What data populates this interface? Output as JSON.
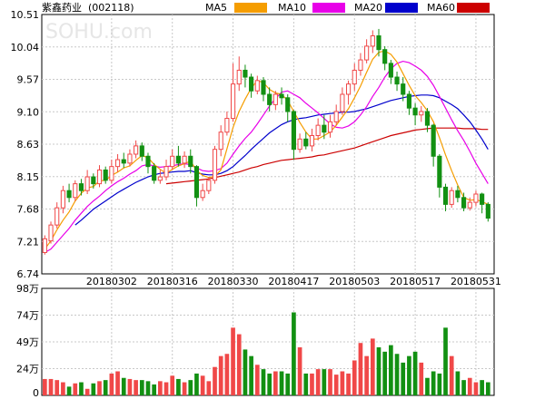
{
  "header": {
    "stock_name": "紫鑫药业",
    "stock_code": "(002118)",
    "watermark": "SOHU.com"
  },
  "colors": {
    "up": "#f04848",
    "down": "#129012",
    "ma5": "#f59d00",
    "ma10": "#e800e8",
    "ma20": "#0000cc",
    "ma60": "#cc0000",
    "grid": "#c8c8c8",
    "axis": "#000000"
  },
  "chart_data": [
    {
      "type": "candlestick",
      "title": "",
      "legend": [
        {
          "name": "MA5",
          "color": "#f59d00"
        },
        {
          "name": "MA10",
          "color": "#e800e8"
        },
        {
          "name": "MA20",
          "color": "#0000cc"
        },
        {
          "name": "MA60",
          "color": "#cc0000"
        }
      ],
      "legend_placement": "top",
      "y_ticks": [
        "10.51",
        "10.04",
        "9.57",
        "9.10",
        "8.63",
        "8.15",
        "7.68",
        "7.21",
        "6.74"
      ],
      "ylim": [
        6.74,
        10.51
      ],
      "x_ticks": [
        "20180302",
        "20180316",
        "20180330",
        "20180417",
        "20180503",
        "20180517",
        "20180531"
      ],
      "x_tick_index": [
        11,
        21,
        31,
        41,
        51,
        61,
        71
      ],
      "grid": true,
      "candles": [
        [
          7.05,
          7.25,
          7.3,
          7.02
        ],
        [
          7.22,
          7.45,
          7.5,
          7.18
        ],
        [
          7.45,
          7.7,
          7.78,
          7.4
        ],
        [
          7.7,
          7.95,
          8.02,
          7.62
        ],
        [
          7.95,
          7.85,
          8.05,
          7.78
        ],
        [
          7.85,
          8.05,
          8.1,
          7.8
        ],
        [
          8.05,
          7.95,
          8.12,
          7.88
        ],
        [
          7.95,
          8.15,
          8.25,
          7.9
        ],
        [
          8.15,
          8.05,
          8.2,
          7.98
        ],
        [
          8.05,
          8.25,
          8.32,
          8.0
        ],
        [
          8.25,
          8.1,
          8.3,
          8.05
        ],
        [
          8.1,
          8.3,
          8.4,
          8.05
        ],
        [
          8.3,
          8.4,
          8.48,
          8.22
        ],
        [
          8.4,
          8.35,
          8.5,
          8.28
        ],
        [
          8.35,
          8.48,
          8.55,
          8.3
        ],
        [
          8.48,
          8.6,
          8.68,
          8.42
        ],
        [
          8.6,
          8.45,
          8.65,
          8.38
        ],
        [
          8.45,
          8.3,
          8.5,
          8.2
        ],
        [
          8.3,
          8.1,
          8.35,
          8.05
        ],
        [
          8.1,
          8.15,
          8.25,
          8.05
        ],
        [
          8.15,
          8.3,
          8.4,
          8.1
        ],
        [
          8.3,
          8.45,
          8.55,
          8.25
        ],
        [
          8.45,
          8.35,
          8.6,
          8.3
        ],
        [
          8.35,
          8.45,
          8.52,
          8.28
        ],
        [
          8.45,
          8.3,
          8.55,
          8.2
        ],
        [
          8.3,
          7.85,
          8.32,
          7.72
        ],
        [
          7.85,
          7.95,
          8.05,
          7.8
        ],
        [
          7.95,
          8.1,
          8.15,
          7.9
        ],
        [
          8.1,
          8.55,
          8.6,
          8.05
        ],
        [
          8.55,
          8.8,
          8.9,
          8.45
        ],
        [
          8.8,
          9.0,
          9.1,
          8.75
        ],
        [
          9.0,
          9.5,
          9.8,
          8.95
        ],
        [
          9.5,
          9.7,
          9.9,
          9.4
        ],
        [
          9.7,
          9.6,
          9.78,
          9.45
        ],
        [
          9.6,
          9.4,
          9.65,
          9.3
        ],
        [
          9.4,
          9.55,
          9.62,
          9.35
        ],
        [
          9.55,
          9.35,
          9.6,
          9.25
        ],
        [
          9.35,
          9.2,
          9.45,
          9.1
        ],
        [
          9.2,
          9.35,
          9.4,
          9.12
        ],
        [
          9.35,
          9.3,
          9.45,
          9.2
        ],
        [
          9.3,
          9.1,
          9.35,
          8.95
        ],
        [
          9.1,
          8.55,
          9.12,
          8.4
        ],
        [
          8.55,
          8.7,
          8.78,
          8.5
        ],
        [
          8.7,
          8.6,
          8.8,
          8.55
        ],
        [
          8.6,
          8.75,
          8.85,
          8.52
        ],
        [
          8.75,
          8.9,
          9.0,
          8.68
        ],
        [
          8.9,
          8.8,
          9.05,
          8.7
        ],
        [
          8.8,
          8.95,
          9.05,
          8.72
        ],
        [
          8.95,
          9.1,
          9.2,
          8.9
        ],
        [
          9.1,
          9.35,
          9.45,
          9.05
        ],
        [
          9.35,
          9.5,
          9.55,
          9.2
        ],
        [
          9.5,
          9.7,
          9.8,
          9.4
        ],
        [
          9.7,
          9.85,
          9.95,
          9.62
        ],
        [
          9.85,
          10.05,
          10.15,
          9.8
        ],
        [
          10.05,
          10.2,
          10.28,
          9.95
        ],
        [
          10.2,
          10.0,
          10.3,
          9.9
        ],
        [
          10.0,
          9.8,
          10.05,
          9.7
        ],
        [
          9.8,
          9.6,
          9.85,
          9.5
        ],
        [
          9.6,
          9.5,
          9.68,
          9.4
        ],
        [
          9.5,
          9.35,
          9.6,
          9.25
        ],
        [
          9.35,
          9.15,
          9.4,
          9.05
        ],
        [
          9.15,
          9.05,
          9.22,
          8.9
        ],
        [
          9.05,
          9.1,
          9.18,
          8.95
        ],
        [
          9.1,
          8.9,
          9.15,
          8.8
        ],
        [
          8.9,
          8.45,
          8.92,
          8.3
        ],
        [
          8.45,
          8.0,
          8.48,
          7.85
        ],
        [
          8.0,
          7.75,
          8.05,
          7.65
        ],
        [
          7.75,
          7.95,
          8.0,
          7.7
        ],
        [
          7.95,
          7.85,
          8.02,
          7.78
        ],
        [
          7.85,
          7.7,
          7.92,
          7.65
        ],
        [
          7.7,
          7.78,
          7.85,
          7.66
        ],
        [
          7.78,
          7.9,
          7.95,
          7.72
        ],
        [
          7.9,
          7.75,
          7.92,
          7.62
        ],
        [
          7.75,
          7.55,
          7.78,
          7.5
        ]
      ],
      "ma5": [
        7.1,
        7.22,
        7.38,
        7.52,
        7.64,
        7.8,
        7.91,
        7.99,
        8.01,
        8.09,
        8.1,
        8.17,
        8.22,
        8.28,
        8.31,
        8.39,
        8.46,
        8.43,
        8.33,
        8.26,
        8.2,
        8.26,
        8.31,
        8.34,
        8.38,
        8.24,
        8.17,
        8.14,
        8.16,
        8.25,
        8.56,
        8.87,
        9.1,
        9.28,
        9.44,
        9.55,
        9.52,
        9.42,
        9.37,
        9.35,
        9.26,
        9.1,
        8.94,
        8.8,
        8.7,
        8.7,
        8.75,
        8.8,
        8.9,
        9.02,
        9.14,
        9.3,
        9.47,
        9.67,
        9.86,
        9.96,
        9.98,
        9.93,
        9.82,
        9.65,
        9.48,
        9.33,
        9.23,
        9.11,
        8.95,
        8.72,
        8.47,
        8.24,
        8.03,
        7.85,
        7.81,
        7.82,
        7.79,
        7.75
      ],
      "ma10": [
        7.05,
        7.1,
        7.2,
        7.3,
        7.4,
        7.52,
        7.62,
        7.72,
        7.8,
        7.87,
        7.95,
        8.02,
        8.08,
        8.13,
        8.19,
        8.24,
        8.31,
        8.33,
        8.31,
        8.29,
        8.3,
        8.31,
        8.33,
        8.34,
        8.33,
        8.28,
        8.24,
        8.23,
        8.24,
        8.27,
        8.35,
        8.48,
        8.6,
        8.71,
        8.8,
        8.92,
        9.05,
        9.18,
        9.29,
        9.38,
        9.4,
        9.35,
        9.3,
        9.22,
        9.15,
        9.08,
        9.0,
        8.92,
        8.87,
        8.86,
        8.89,
        8.95,
        9.05,
        9.17,
        9.32,
        9.45,
        9.6,
        9.72,
        9.8,
        9.83,
        9.81,
        9.76,
        9.7,
        9.61,
        9.48,
        9.32,
        9.15,
        8.98,
        8.82,
        8.68,
        8.52,
        8.35,
        8.2,
        8.05
      ],
      "ma20": [
        null,
        null,
        null,
        null,
        null,
        7.45,
        7.52,
        7.6,
        7.68,
        7.74,
        7.8,
        7.86,
        7.92,
        7.97,
        8.02,
        8.07,
        8.11,
        8.15,
        8.18,
        8.2,
        8.21,
        8.22,
        8.23,
        8.23,
        8.24,
        8.21,
        8.19,
        8.18,
        8.18,
        8.2,
        8.24,
        8.3,
        8.38,
        8.46,
        8.55,
        8.63,
        8.71,
        8.79,
        8.85,
        8.91,
        8.95,
        8.98,
        9.0,
        9.01,
        9.03,
        9.05,
        9.06,
        9.07,
        9.08,
        9.09,
        9.09,
        9.1,
        9.12,
        9.14,
        9.17,
        9.2,
        9.23,
        9.26,
        9.28,
        9.3,
        9.32,
        9.33,
        9.34,
        9.34,
        9.33,
        9.3,
        9.25,
        9.2,
        9.14,
        9.05,
        8.95,
        8.83,
        8.7,
        8.55
      ],
      "ma60": [
        null,
        null,
        null,
        null,
        null,
        null,
        null,
        null,
        null,
        null,
        null,
        null,
        null,
        null,
        null,
        null,
        null,
        null,
        null,
        null,
        8.05,
        8.06,
        8.07,
        8.08,
        8.09,
        8.1,
        8.11,
        8.12,
        8.14,
        8.16,
        8.18,
        8.2,
        8.22,
        8.25,
        8.28,
        8.3,
        8.33,
        8.35,
        8.37,
        8.39,
        8.4,
        8.41,
        8.42,
        8.43,
        8.44,
        8.46,
        8.47,
        8.49,
        8.51,
        8.53,
        8.55,
        8.57,
        8.6,
        8.63,
        8.66,
        8.69,
        8.72,
        8.75,
        8.77,
        8.79,
        8.81,
        8.83,
        8.84,
        8.85,
        8.86,
        8.86,
        8.86,
        8.86,
        8.86,
        8.85,
        8.85,
        8.85,
        8.84,
        8.84
      ]
    },
    {
      "type": "bar",
      "title": "",
      "y_ticks": [
        "98万",
        "74万",
        "49万",
        "24万",
        "0"
      ],
      "ylim": [
        0,
        98
      ],
      "unit": "万",
      "volumes": [
        15,
        15,
        14,
        12,
        8,
        11,
        12,
        6,
        11,
        13,
        14,
        20,
        22,
        16,
        15,
        14,
        14,
        13,
        10,
        13,
        12,
        18,
        15,
        12,
        14,
        20,
        18,
        13,
        26,
        36,
        38,
        62,
        56,
        42,
        36,
        28,
        24,
        20,
        22,
        22,
        20,
        76,
        44,
        20,
        20,
        24,
        24,
        24,
        19,
        22,
        20,
        32,
        48,
        36,
        52,
        44,
        40,
        46,
        38,
        30,
        36,
        40,
        30,
        16,
        22,
        20,
        62,
        36,
        22,
        14,
        16,
        12,
        14,
        12
      ]
    }
  ]
}
